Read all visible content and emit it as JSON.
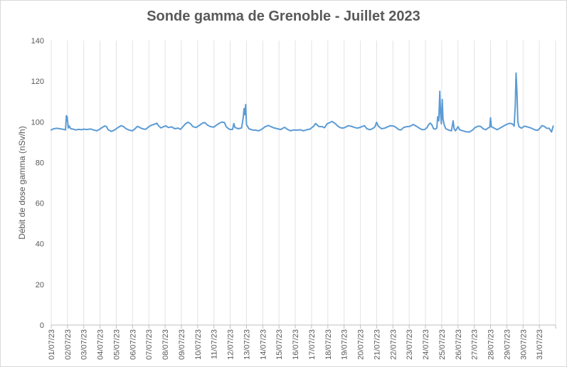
{
  "chart_data": {
    "type": "line",
    "title": "Sonde gamma de Grenoble - Juillet 2023",
    "xlabel": "",
    "ylabel": "Débit de dose gamma (nSv/h)",
    "ylim": [
      0,
      140
    ],
    "yticks": [
      0,
      20,
      40,
      60,
      80,
      100,
      120,
      140
    ],
    "grid": "vertical",
    "legend": "none",
    "color": "#5b9bd5",
    "x_labels": [
      "01/07/23",
      "02/07/23",
      "03/07/23",
      "04/07/23",
      "05/07/23",
      "06/07/23",
      "07/07/23",
      "08/07/23",
      "09/07/23",
      "10/07/23",
      "11/07/23",
      "12/07/23",
      "13/07/23",
      "14/07/23",
      "15/07/23",
      "16/07/23",
      "17/07/23",
      "18/07/23",
      "19/07/23",
      "20/07/23",
      "21/07/23",
      "22/07/23",
      "23/07/23",
      "24/07/23",
      "25/07/23",
      "26/07/23",
      "27/07/23",
      "28/07/23",
      "29/07/23",
      "30/07/23",
      "31/07/23"
    ],
    "x_range": [
      0,
      31
    ],
    "series": [
      {
        "points": [
          [
            0.0,
            96
          ],
          [
            0.15,
            96.6
          ],
          [
            0.35,
            96.8
          ],
          [
            0.6,
            96.5
          ],
          [
            0.8,
            96.2
          ],
          [
            0.88,
            96
          ],
          [
            0.93,
            103
          ],
          [
            0.98,
            102.5
          ],
          [
            1.05,
            97
          ],
          [
            1.1,
            98
          ],
          [
            1.2,
            96.6
          ],
          [
            1.35,
            96.4
          ],
          [
            1.5,
            96
          ],
          [
            1.7,
            96.3
          ],
          [
            1.85,
            96.1
          ],
          [
            2.0,
            96.4
          ],
          [
            2.2,
            96.2
          ],
          [
            2.4,
            96.5
          ],
          [
            2.6,
            96.0
          ],
          [
            2.8,
            95.6
          ],
          [
            2.95,
            96.2
          ],
          [
            3.15,
            97.3
          ],
          [
            3.3,
            98.0
          ],
          [
            3.4,
            97.6
          ],
          [
            3.5,
            96.1
          ],
          [
            3.7,
            95.3
          ],
          [
            3.9,
            96.0
          ],
          [
            4.1,
            97.2
          ],
          [
            4.3,
            98.1
          ],
          [
            4.45,
            97.6
          ],
          [
            4.6,
            96.6
          ],
          [
            4.8,
            95.9
          ],
          [
            5.0,
            95.6
          ],
          [
            5.15,
            96.6
          ],
          [
            5.3,
            97.8
          ],
          [
            5.45,
            97.2
          ],
          [
            5.6,
            96.6
          ],
          [
            5.8,
            96.3
          ],
          [
            6.0,
            97.6
          ],
          [
            6.15,
            98.3
          ],
          [
            6.3,
            98.7
          ],
          [
            6.5,
            99.3
          ],
          [
            6.6,
            98.0
          ],
          [
            6.75,
            97.0
          ],
          [
            6.9,
            97.6
          ],
          [
            7.05,
            98.0
          ],
          [
            7.2,
            97.2
          ],
          [
            7.4,
            97.5
          ],
          [
            7.6,
            96.6
          ],
          [
            7.8,
            96.9
          ],
          [
            7.95,
            96.3
          ],
          [
            8.1,
            97.7
          ],
          [
            8.25,
            99.0
          ],
          [
            8.4,
            99.8
          ],
          [
            8.55,
            99.2
          ],
          [
            8.7,
            97.7
          ],
          [
            8.9,
            97.2
          ],
          [
            9.1,
            98.2
          ],
          [
            9.3,
            99.4
          ],
          [
            9.45,
            99.6
          ],
          [
            9.6,
            98.4
          ],
          [
            9.8,
            97.6
          ],
          [
            10.0,
            97.4
          ],
          [
            10.15,
            98.3
          ],
          [
            10.35,
            99.4
          ],
          [
            10.5,
            99.9
          ],
          [
            10.65,
            99.6
          ],
          [
            10.75,
            97.6
          ],
          [
            10.9,
            96.6
          ],
          [
            11.0,
            96.2
          ],
          [
            11.15,
            96.3
          ],
          [
            11.22,
            99.2
          ],
          [
            11.3,
            97.2
          ],
          [
            11.5,
            96.6
          ],
          [
            11.7,
            97.0
          ],
          [
            11.8,
            102.0
          ],
          [
            11.85,
            106.5
          ],
          [
            11.9,
            103.5
          ],
          [
            11.95,
            108.5
          ],
          [
            12.0,
            98.6
          ],
          [
            12.15,
            96.6
          ],
          [
            12.35,
            96.0
          ],
          [
            12.55,
            95.9
          ],
          [
            12.75,
            95.6
          ],
          [
            12.95,
            96.4
          ],
          [
            13.15,
            97.6
          ],
          [
            13.35,
            98.2
          ],
          [
            13.5,
            97.6
          ],
          [
            13.7,
            97.0
          ],
          [
            13.9,
            96.6
          ],
          [
            14.1,
            96.2
          ],
          [
            14.25,
            96.9
          ],
          [
            14.35,
            97.3
          ],
          [
            14.5,
            96.4
          ],
          [
            14.7,
            95.6
          ],
          [
            14.9,
            96.0
          ],
          [
            15.1,
            95.9
          ],
          [
            15.3,
            96.1
          ],
          [
            15.5,
            95.6
          ],
          [
            15.7,
            96.1
          ],
          [
            15.9,
            96.4
          ],
          [
            16.1,
            97.6
          ],
          [
            16.25,
            99.2
          ],
          [
            16.45,
            97.7
          ],
          [
            16.65,
            97.6
          ],
          [
            16.8,
            97.1
          ],
          [
            16.95,
            99.0
          ],
          [
            17.1,
            99.5
          ],
          [
            17.25,
            100.2
          ],
          [
            17.45,
            99.2
          ],
          [
            17.6,
            98.0
          ],
          [
            17.75,
            97.2
          ],
          [
            17.9,
            96.9
          ],
          [
            18.05,
            97.2
          ],
          [
            18.25,
            98.1
          ],
          [
            18.45,
            97.8
          ],
          [
            18.65,
            97.2
          ],
          [
            18.85,
            96.9
          ],
          [
            19.05,
            97.5
          ],
          [
            19.25,
            98.1
          ],
          [
            19.4,
            96.6
          ],
          [
            19.6,
            96.1
          ],
          [
            19.8,
            96.9
          ],
          [
            19.9,
            97.6
          ],
          [
            20.0,
            99.8
          ],
          [
            20.1,
            97.9
          ],
          [
            20.3,
            96.6
          ],
          [
            20.5,
            96.9
          ],
          [
            20.7,
            97.6
          ],
          [
            20.85,
            98.1
          ],
          [
            21.05,
            97.9
          ],
          [
            21.2,
            97.2
          ],
          [
            21.35,
            96.2
          ],
          [
            21.5,
            96.0
          ],
          [
            21.65,
            97.2
          ],
          [
            21.85,
            97.6
          ],
          [
            22.05,
            97.8
          ],
          [
            22.25,
            98.7
          ],
          [
            22.45,
            97.8
          ],
          [
            22.6,
            97.0
          ],
          [
            22.8,
            96.1
          ],
          [
            22.95,
            96.2
          ],
          [
            23.1,
            97.2
          ],
          [
            23.2,
            98.7
          ],
          [
            23.3,
            99.4
          ],
          [
            23.4,
            98.4
          ],
          [
            23.5,
            96.6
          ],
          [
            23.6,
            96.4
          ],
          [
            23.7,
            97.0
          ],
          [
            23.75,
            102.5
          ],
          [
            23.82,
            100.5
          ],
          [
            23.88,
            115.0
          ],
          [
            23.93,
            104.0
          ],
          [
            23.98,
            99.0
          ],
          [
            24.03,
            111.0
          ],
          [
            24.08,
            101.5
          ],
          [
            24.15,
            98.6
          ],
          [
            24.25,
            96.6
          ],
          [
            24.45,
            95.9
          ],
          [
            24.6,
            95.6
          ],
          [
            24.7,
            100.5
          ],
          [
            24.76,
            96.6
          ],
          [
            24.85,
            95.6
          ],
          [
            25.0,
            97.6
          ],
          [
            25.1,
            96.1
          ],
          [
            25.3,
            95.6
          ],
          [
            25.5,
            95.1
          ],
          [
            25.7,
            95.0
          ],
          [
            25.9,
            96.0
          ],
          [
            26.05,
            97.2
          ],
          [
            26.25,
            97.9
          ],
          [
            26.4,
            97.7
          ],
          [
            26.55,
            96.6
          ],
          [
            26.7,
            96.1
          ],
          [
            26.85,
            97.0
          ],
          [
            26.95,
            97.3
          ],
          [
            27.0,
            102.0
          ],
          [
            27.05,
            97.6
          ],
          [
            27.2,
            97.0
          ],
          [
            27.4,
            96.1
          ],
          [
            27.6,
            97.0
          ],
          [
            27.8,
            97.9
          ],
          [
            28.0,
            98.8
          ],
          [
            28.2,
            99.3
          ],
          [
            28.35,
            98.9
          ],
          [
            28.45,
            97.9
          ],
          [
            28.52,
            108.0
          ],
          [
            28.57,
            124.0
          ],
          [
            28.62,
            115.0
          ],
          [
            28.68,
            100.0
          ],
          [
            28.75,
            97.6
          ],
          [
            28.9,
            96.9
          ],
          [
            29.1,
            97.9
          ],
          [
            29.3,
            97.4
          ],
          [
            29.5,
            96.9
          ],
          [
            29.7,
            96.1
          ],
          [
            29.9,
            95.8
          ],
          [
            30.05,
            97.0
          ],
          [
            30.15,
            98.1
          ],
          [
            30.3,
            97.8
          ],
          [
            30.45,
            96.8
          ],
          [
            30.6,
            96.8
          ],
          [
            30.75,
            95.0
          ],
          [
            30.85,
            97.9
          ]
        ]
      }
    ]
  }
}
